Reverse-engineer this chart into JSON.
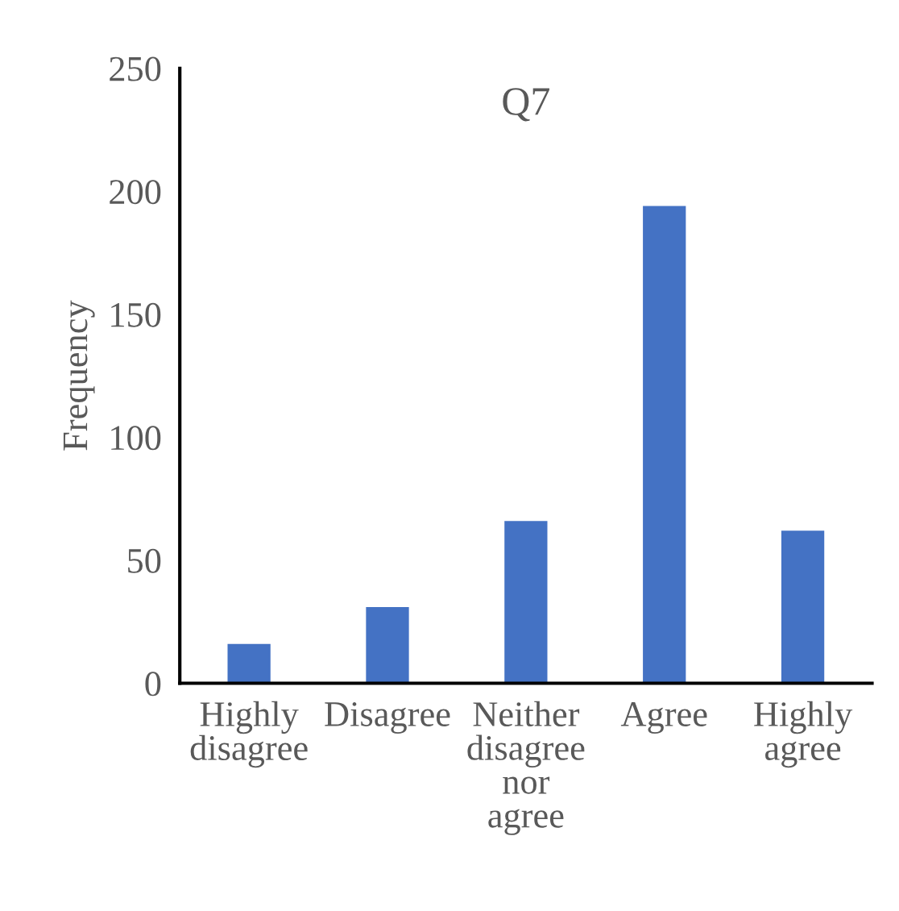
{
  "chart_data": {
    "type": "bar",
    "title": "Q7",
    "ylabel": "Frequency",
    "categories": [
      "Highly\ndisagree",
      "Disagree",
      "Neither\ndisagree\nnor\nagree",
      "Agree",
      "Highly\nagree"
    ],
    "values": [
      16,
      31,
      66,
      194,
      62
    ],
    "color": "#4472c4",
    "ylim": [
      0,
      250
    ],
    "yticks": [
      0,
      50,
      100,
      150,
      200,
      250
    ],
    "grid": false
  }
}
